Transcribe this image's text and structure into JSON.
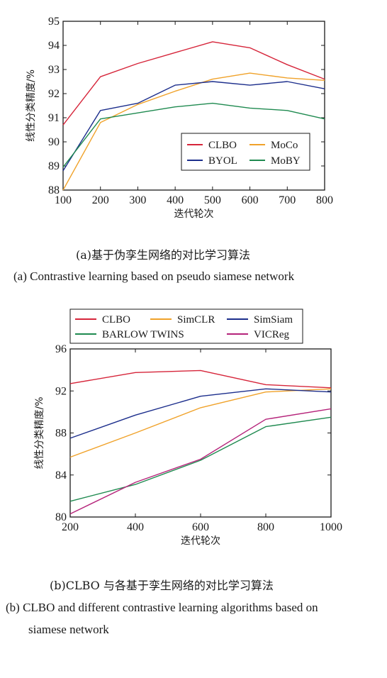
{
  "chart_data": [
    {
      "type": "line",
      "x": [
        100,
        200,
        300,
        400,
        500,
        600,
        700,
        800
      ],
      "xlim": [
        100,
        800
      ],
      "ylim": [
        88,
        95
      ],
      "xticks": [
        "100",
        "200",
        "300",
        "400",
        "500",
        "600",
        "700",
        "800"
      ],
      "yticks": [
        "88",
        "89",
        "90",
        "91",
        "92",
        "93",
        "94",
        "95"
      ],
      "xlabel": "迭代轮次",
      "ylabel": "线性分类精度/%",
      "legend_position": "lower-right",
      "series": [
        {
          "name": "CLBO",
          "color": "#d6253a",
          "values": [
            90.7,
            92.7,
            93.25,
            93.7,
            94.15,
            93.9,
            93.2,
            92.6
          ]
        },
        {
          "name": "MoCo",
          "color": "#f0a22a",
          "values": [
            88.0,
            90.8,
            91.55,
            92.1,
            92.6,
            92.85,
            92.65,
            92.55
          ]
        },
        {
          "name": "BYOL",
          "color": "#1c2e8c",
          "values": [
            88.8,
            91.3,
            91.6,
            92.35,
            92.5,
            92.35,
            92.5,
            92.2
          ]
        },
        {
          "name": "MoBY",
          "color": "#1f8a50",
          "values": [
            88.95,
            90.95,
            91.2,
            91.45,
            91.6,
            91.4,
            91.3,
            90.95
          ]
        }
      ]
    },
    {
      "type": "line",
      "x": [
        200,
        400,
        600,
        800,
        1000
      ],
      "xlim": [
        200,
        1000
      ],
      "ylim": [
        80,
        96
      ],
      "xticks": [
        "200",
        "400",
        "600",
        "800",
        "1000"
      ],
      "yticks": [
        "80",
        "84",
        "88",
        "92",
        "96"
      ],
      "xlabel": "迭代轮次",
      "ylabel": "线性分类精度/%",
      "legend_position": "top-outside",
      "series": [
        {
          "name": "CLBO",
          "color": "#d6253a",
          "values": [
            92.7,
            93.75,
            93.95,
            92.6,
            92.3
          ]
        },
        {
          "name": "SimCLR",
          "color": "#f0a22a",
          "values": [
            85.7,
            88.0,
            90.4,
            91.9,
            92.2
          ]
        },
        {
          "name": "SimSiam",
          "color": "#1c2e8c",
          "values": [
            87.5,
            89.7,
            91.5,
            92.2,
            91.9
          ]
        },
        {
          "name": "BARLOW TWINS",
          "color": "#1f8a50",
          "values": [
            81.5,
            83.1,
            85.4,
            88.6,
            89.5
          ]
        },
        {
          "name": "VICReg",
          "color": "#b5237a",
          "values": [
            80.3,
            83.3,
            85.5,
            89.3,
            90.3
          ]
        }
      ]
    }
  ],
  "captions": {
    "a_cn": "(a)基于伪孪生网络的对比学习算法",
    "a_en": "(a) Contrastive learning based on pseudo siamese network",
    "b_cn": "(b)CLBO 与各基于孪生网络的对比学习算法",
    "b_en_line1": "(b) CLBO and different contrastive learning algorithms based on",
    "b_en_line2": "siamese network"
  }
}
